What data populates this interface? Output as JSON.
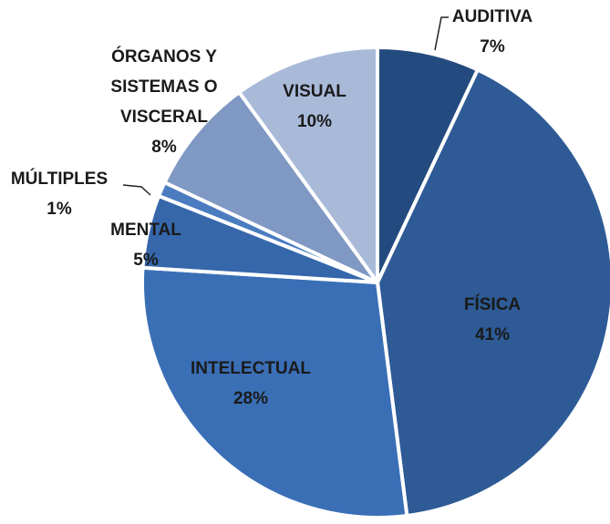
{
  "chart_data": {
    "type": "pie",
    "categories": [
      "AUDITIVA",
      "FÍSICA",
      "INTELECTUAL",
      "MENTAL",
      "MÚLTIPLES",
      "ÓRGANOS Y SISTEMAS O VISCERAL",
      "VISUAL"
    ],
    "values": [
      7,
      41,
      28,
      5,
      1,
      8,
      10
    ],
    "value_labels": [
      "7%",
      "41%",
      "28%",
      "5%",
      "1%",
      "8%",
      "10%"
    ],
    "colors": [
      "#244b7f",
      "#2e5b96",
      "#3a6fb6",
      "#3667ab",
      "#4b7cc0",
      "#7f98c4",
      "#a9bad9"
    ]
  }
}
